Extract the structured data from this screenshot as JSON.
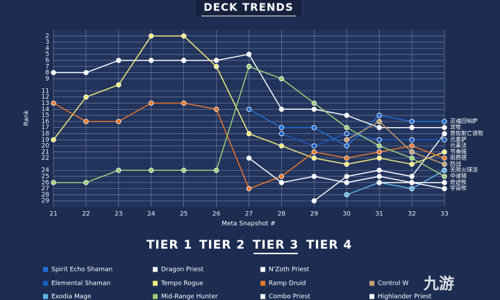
{
  "chart_data": {
    "type": "line",
    "title": "DECK TRENDS",
    "x_label": "Meta Snapshot #",
    "y_label": "Rank",
    "x": [
      21,
      22,
      23,
      24,
      25,
      26,
      27,
      28,
      29,
      30,
      31,
      32,
      33
    ],
    "xlim": [
      21,
      33
    ],
    "xticks": [
      21,
      22,
      23,
      24,
      25,
      26,
      27,
      28,
      29,
      30,
      31,
      32,
      33
    ],
    "ylim": [
      1,
      30
    ],
    "y_reversed": true,
    "yticks": [
      2,
      3,
      4,
      5,
      6,
      7,
      8,
      9,
      11,
      12,
      13,
      14,
      15,
      16,
      17,
      18,
      19,
      20,
      21,
      22,
      24,
      25,
      26,
      27,
      28,
      29
    ],
    "grid": true,
    "series": [
      {
        "name": "Spirit Echo Shaman",
        "color": "#1f6fd6",
        "values": [
          null,
          null,
          null,
          null,
          null,
          null,
          14,
          17,
          17,
          20,
          15,
          16,
          16
        ]
      },
      {
        "name": "Dragon Priest",
        "color": "#ffffff",
        "values": [
          8,
          8,
          6,
          6,
          6,
          6,
          5,
          14,
          14,
          15,
          17,
          17,
          17
        ]
      },
      {
        "name": "N'Zoth Priest",
        "color": "#ffffff",
        "values": [
          null,
          null,
          null,
          null,
          null,
          null,
          null,
          null,
          29,
          25,
          24,
          25,
          18
        ]
      },
      {
        "name": "Elemental Shaman",
        "color": "#1a5cc0",
        "values": [
          null,
          null,
          null,
          null,
          null,
          null,
          null,
          18,
          20,
          18,
          19,
          19,
          19
        ]
      },
      {
        "name": "Tempo Rogue",
        "color": "#f4ee7a",
        "values": [
          19,
          12,
          10,
          2,
          2,
          7,
          18,
          20,
          22,
          23,
          22,
          23,
          21
        ]
      },
      {
        "name": "Ramp Druid",
        "color": "#e8782a",
        "values": [
          13,
          16,
          16,
          13,
          13,
          14,
          27,
          25,
          21,
          22,
          21,
          20,
          22
        ]
      },
      {
        "name": "Control W",
        "color": "#c8a070",
        "values": [
          null,
          null,
          null,
          null,
          null,
          null,
          null,
          null,
          null,
          19,
          16,
          21,
          23
        ]
      },
      {
        "name": "Exodia Mage",
        "color": "#5cb8e8",
        "values": [
          null,
          null,
          null,
          null,
          null,
          null,
          null,
          null,
          null,
          28,
          26,
          27,
          24
        ]
      },
      {
        "name": "Mid-Range Hunter",
        "color": "#9dd17a",
        "values": [
          26,
          26,
          24,
          24,
          24,
          24,
          7,
          9,
          13,
          17,
          20,
          22,
          25
        ]
      },
      {
        "name": "Combo Priest",
        "color": "#ffffff",
        "values": [
          null,
          null,
          null,
          null,
          null,
          null,
          22,
          26,
          25,
          26,
          25,
          26,
          26
        ]
      },
      {
        "name": "Highlander Priest",
        "color": "#ffffff",
        "values": [
          null,
          null,
          null,
          null,
          null,
          null,
          null,
          null,
          null,
          null,
          26,
          26,
          27
        ]
      }
    ],
    "end_labels": [
      {
        "text": "灵魂回响萨",
        "value": 16
      },
      {
        "text": "龙牧",
        "value": 17
      },
      {
        "text": "恩佐斯亡语牧",
        "value": 18
      },
      {
        "text": "元素萨",
        "value": 19
      },
      {
        "text": "元素法",
        "value": 20
      },
      {
        "text": "节奏贼",
        "value": 21
      },
      {
        "text": "斑费德",
        "value": 22
      },
      {
        "text": "防战",
        "value": 23
      },
      {
        "text": "无限火球法",
        "value": 24
      },
      {
        "text": "中速猎",
        "value": 25
      },
      {
        "text": "奇迹牧",
        "value": 26
      },
      {
        "text": "宇宙牧",
        "value": 27
      }
    ],
    "tabs": [
      "TIER 1",
      "TIER 2",
      "TIER 3",
      "TIER 4"
    ],
    "active_tab": 2,
    "watermark": "九游"
  }
}
